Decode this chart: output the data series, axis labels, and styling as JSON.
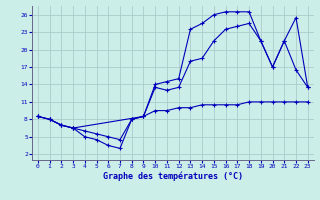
{
  "xlabel": "Graphe des températures (°C)",
  "bg_color": "#cceee8",
  "grid_color": "#aacccc",
  "line_color": "#0000bb",
  "xlim": [
    -0.5,
    23.5
  ],
  "ylim": [
    1,
    27.5
  ],
  "yticks": [
    2,
    5,
    8,
    11,
    14,
    17,
    20,
    23,
    26
  ],
  "xticks": [
    0,
    1,
    2,
    3,
    4,
    5,
    6,
    7,
    8,
    9,
    10,
    11,
    12,
    13,
    14,
    15,
    16,
    17,
    18,
    19,
    20,
    21,
    22,
    23
  ],
  "series1_x": [
    0,
    1,
    2,
    3,
    4,
    5,
    6,
    7,
    8,
    9,
    10,
    11,
    12,
    13,
    14,
    15,
    16,
    17,
    18,
    19,
    20,
    21,
    22,
    23
  ],
  "series1_y": [
    8.5,
    8.0,
    7.0,
    6.5,
    5.0,
    4.5,
    3.5,
    3.0,
    8.0,
    8.5,
    9.5,
    9.5,
    10.0,
    10.0,
    10.5,
    10.5,
    10.5,
    10.5,
    11.0,
    11.0,
    11.0,
    11.0,
    11.0,
    11.0
  ],
  "series2_x": [
    0,
    1,
    2,
    3,
    4,
    5,
    6,
    7,
    8,
    9,
    10,
    11,
    12,
    13,
    14,
    15,
    16,
    17,
    18,
    19,
    20,
    21,
    22,
    23
  ],
  "series2_y": [
    8.5,
    8.0,
    7.0,
    6.5,
    6.0,
    5.5,
    5.0,
    4.5,
    8.0,
    8.5,
    13.5,
    13.0,
    13.5,
    18.0,
    18.5,
    21.5,
    23.5,
    24.0,
    24.5,
    21.5,
    17.0,
    21.5,
    16.5,
    13.5
  ],
  "series3_x": [
    0,
    1,
    2,
    3,
    9,
    10,
    11,
    12,
    13,
    14,
    15,
    16,
    17,
    18,
    19,
    20,
    21,
    22,
    23
  ],
  "series3_y": [
    8.5,
    8.0,
    7.0,
    6.5,
    8.5,
    14.0,
    14.5,
    15.0,
    23.5,
    24.5,
    26.0,
    26.5,
    26.5,
    26.5,
    21.5,
    17.0,
    21.5,
    25.5,
    13.5
  ]
}
